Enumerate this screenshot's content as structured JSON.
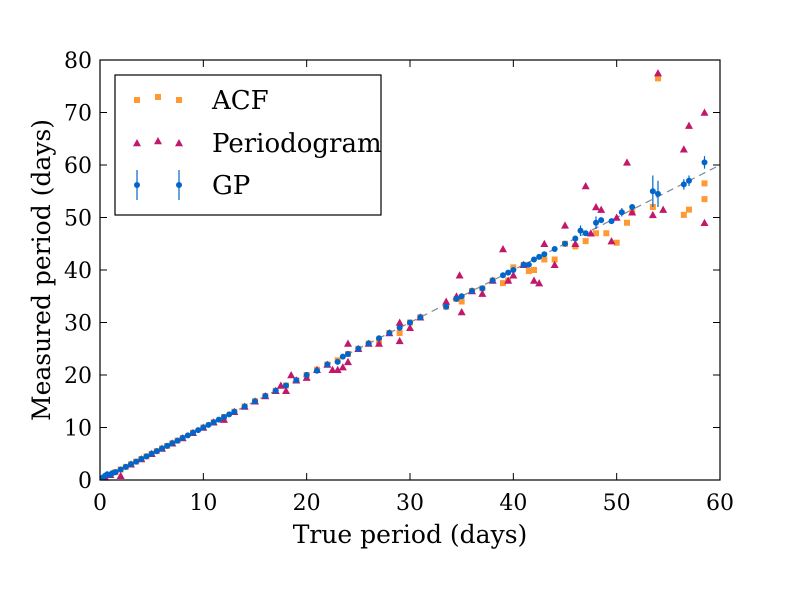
{
  "chart_data": {
    "type": "scatter",
    "title": "",
    "xlabel": "True period (days)",
    "ylabel": "Measured period (days)",
    "xlim": [
      0,
      60
    ],
    "ylim": [
      0,
      80
    ],
    "xticks": [
      0,
      10,
      20,
      30,
      40,
      50,
      60
    ],
    "yticks": [
      0,
      10,
      20,
      30,
      40,
      50,
      60,
      70,
      80
    ],
    "grid": false,
    "legend_position": "top-left",
    "reference_line": {
      "style": "dashed",
      "color": "#7a8a99",
      "x": [
        0,
        60
      ],
      "y": [
        0,
        60
      ]
    },
    "series": [
      {
        "name": "ACF",
        "marker": "square",
        "color": "#ff9933",
        "points": [
          [
            0.5,
            0.5
          ],
          [
            1,
            1
          ],
          [
            1.5,
            1.5
          ],
          [
            2,
            2
          ],
          [
            2.5,
            2.5
          ],
          [
            3,
            3
          ],
          [
            3.5,
            3.5
          ],
          [
            4,
            4
          ],
          [
            4.5,
            4.5
          ],
          [
            5,
            5
          ],
          [
            5.5,
            5.5
          ],
          [
            6,
            6
          ],
          [
            6.5,
            6.5
          ],
          [
            7,
            7
          ],
          [
            7.5,
            7.5
          ],
          [
            8,
            8
          ],
          [
            9,
            9
          ],
          [
            10,
            10
          ],
          [
            11,
            11
          ],
          [
            12,
            12
          ],
          [
            13,
            13
          ],
          [
            14,
            14
          ],
          [
            15,
            15
          ],
          [
            16,
            16
          ],
          [
            17,
            17
          ],
          [
            18,
            18
          ],
          [
            19,
            19
          ],
          [
            20,
            20
          ],
          [
            21,
            21
          ],
          [
            22,
            22
          ],
          [
            23,
            22.8
          ],
          [
            24,
            24
          ],
          [
            25,
            25
          ],
          [
            26,
            26
          ],
          [
            27,
            26.5
          ],
          [
            28,
            28
          ],
          [
            29,
            28
          ],
          [
            30,
            30
          ],
          [
            31,
            31
          ],
          [
            33.5,
            33
          ],
          [
            34.5,
            34.5
          ],
          [
            35,
            34
          ],
          [
            36,
            36
          ],
          [
            37,
            36.5
          ],
          [
            38,
            38
          ],
          [
            39,
            37.5
          ],
          [
            39.5,
            38
          ],
          [
            40,
            40.5
          ],
          [
            41,
            41
          ],
          [
            41.5,
            39.8
          ],
          [
            42,
            40
          ],
          [
            43,
            42
          ],
          [
            44,
            42
          ],
          [
            45,
            45
          ],
          [
            46,
            44.5
          ],
          [
            47,
            45.5
          ],
          [
            48,
            47
          ],
          [
            49,
            47
          ],
          [
            50,
            45.2
          ],
          [
            51,
            49
          ],
          [
            51.5,
            51
          ],
          [
            53.5,
            52
          ],
          [
            54,
            76.5
          ],
          [
            56.5,
            50.5
          ],
          [
            57,
            51.5
          ],
          [
            58.5,
            53.5
          ],
          [
            58.5,
            56.5
          ]
        ]
      },
      {
        "name": "Periodogram",
        "marker": "triangle",
        "color": "#c2186b",
        "points": [
          [
            0.5,
            0.5
          ],
          [
            1,
            1
          ],
          [
            2,
            0.8
          ],
          [
            3,
            3
          ],
          [
            4,
            4
          ],
          [
            5,
            5
          ],
          [
            6,
            6
          ],
          [
            7,
            7
          ],
          [
            8,
            8
          ],
          [
            9,
            9
          ],
          [
            10,
            10
          ],
          [
            11,
            11
          ],
          [
            12,
            11.5
          ],
          [
            13,
            13
          ],
          [
            14,
            14
          ],
          [
            15,
            15
          ],
          [
            16,
            16
          ],
          [
            17,
            17
          ],
          [
            17.5,
            18
          ],
          [
            18,
            17
          ],
          [
            18.5,
            20
          ],
          [
            19,
            19
          ],
          [
            20,
            19.5
          ],
          [
            21,
            21
          ],
          [
            22,
            22
          ],
          [
            22.5,
            21
          ],
          [
            23,
            21
          ],
          [
            23.5,
            21.5
          ],
          [
            24,
            22.5
          ],
          [
            24,
            26
          ],
          [
            25,
            25
          ],
          [
            26,
            26
          ],
          [
            27,
            26
          ],
          [
            28,
            28
          ],
          [
            29,
            26.5
          ],
          [
            29,
            30
          ],
          [
            30,
            29
          ],
          [
            31,
            31
          ],
          [
            33.5,
            34
          ],
          [
            34.5,
            35
          ],
          [
            34.8,
            39
          ],
          [
            35,
            32
          ],
          [
            36,
            36
          ],
          [
            37,
            35.5
          ],
          [
            38,
            38
          ],
          [
            39,
            44
          ],
          [
            39.5,
            38
          ],
          [
            40,
            39
          ],
          [
            41,
            41
          ],
          [
            42,
            38
          ],
          [
            42.5,
            37.5
          ],
          [
            43,
            45
          ],
          [
            44,
            41
          ],
          [
            45,
            48.5
          ],
          [
            46,
            45
          ],
          [
            47,
            56
          ],
          [
            47.5,
            47
          ],
          [
            48,
            52
          ],
          [
            48.5,
            51.5
          ],
          [
            49.5,
            45.5
          ],
          [
            50,
            50
          ],
          [
            51,
            60.5
          ],
          [
            51.5,
            51
          ],
          [
            53.5,
            50.5
          ],
          [
            54,
            77.5
          ],
          [
            54.5,
            51.5
          ],
          [
            56.5,
            63
          ],
          [
            57,
            67.5
          ],
          [
            58.5,
            49
          ],
          [
            58.5,
            70
          ]
        ]
      },
      {
        "name": "GP",
        "marker": "circle",
        "color": "#0066cc",
        "errorbars": true,
        "points": [
          [
            0.3,
            0.5
          ],
          [
            0.5,
            0.8
          ],
          [
            0.7,
            1.1
          ],
          [
            1,
            1
          ],
          [
            1.2,
            1.3
          ],
          [
            1.5,
            1.5
          ],
          [
            2,
            2
          ],
          [
            2.5,
            2.5
          ],
          [
            3,
            3
          ],
          [
            3.5,
            3.5
          ],
          [
            4,
            4
          ],
          [
            4.5,
            4.5
          ],
          [
            5,
            5
          ],
          [
            5.5,
            5.5
          ],
          [
            6,
            6
          ],
          [
            6.5,
            6.5
          ],
          [
            7,
            7
          ],
          [
            7.5,
            7.5
          ],
          [
            8,
            8
          ],
          [
            8.5,
            8.5
          ],
          [
            9,
            9
          ],
          [
            9.5,
            9.5
          ],
          [
            10,
            10
          ],
          [
            10.5,
            10.5
          ],
          [
            11,
            11
          ],
          [
            11.5,
            11.5
          ],
          [
            12,
            12
          ],
          [
            12.5,
            12.5
          ],
          [
            13,
            13
          ],
          [
            14,
            14
          ],
          [
            15,
            15
          ],
          [
            16,
            16
          ],
          [
            17,
            17
          ],
          [
            18,
            18
          ],
          [
            19,
            19
          ],
          [
            20,
            20
          ],
          [
            21,
            20.8
          ],
          [
            22,
            22
          ],
          [
            23,
            22.5
          ],
          [
            23.5,
            23.5
          ],
          [
            24,
            24
          ],
          [
            25,
            25
          ],
          [
            26,
            26
          ],
          [
            27,
            27
          ],
          [
            28,
            28
          ],
          [
            29,
            29
          ],
          [
            30,
            30
          ],
          [
            31,
            31
          ],
          [
            33.5,
            33
          ],
          [
            34.5,
            34.5
          ],
          [
            35,
            35
          ],
          [
            36,
            36
          ],
          [
            37,
            36.5
          ],
          [
            38,
            38
          ],
          [
            39,
            39
          ],
          [
            39.5,
            39.5
          ],
          [
            40,
            40
          ],
          [
            41,
            41
          ],
          [
            41.5,
            41
          ],
          [
            42,
            42
          ],
          [
            42.5,
            42.5
          ],
          [
            43,
            43
          ],
          [
            44,
            44
          ],
          [
            45,
            45
          ],
          [
            46,
            46
          ],
          [
            46.5,
            47.5
          ],
          [
            47,
            47
          ],
          [
            48,
            49
          ],
          [
            48.5,
            49.5
          ],
          [
            49.5,
            49.3
          ],
          [
            50.5,
            51
          ],
          [
            51.5,
            52
          ],
          [
            53.5,
            55
          ],
          [
            54,
            54.5
          ],
          [
            56.5,
            56.3
          ],
          [
            57,
            57
          ],
          [
            58.5,
            60.5
          ]
        ],
        "errors": {
          "46.5": 1.0,
          "48": 1.2,
          "50.5": 0.8,
          "53.5": 3.0,
          "54": 2.5,
          "56.5": 1.0,
          "57": 1.0,
          "58.5": 1.2
        }
      }
    ]
  }
}
